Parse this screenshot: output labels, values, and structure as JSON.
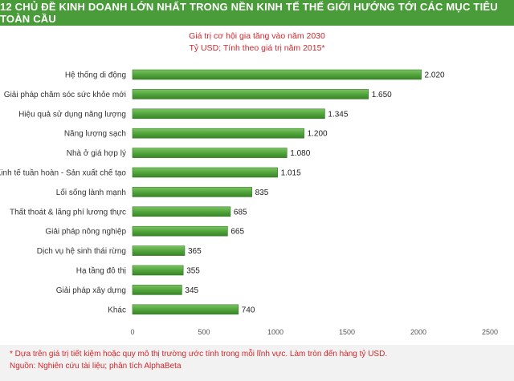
{
  "header": {
    "title": "12 CHỦ ĐỀ KINH DOANH LỚN NHẤT TRONG NỀN KINH TẾ THẾ GIỚI HƯỚNG TỚI CÁC MỤC TIÊU TOÀN CẦU",
    "subtitle_line1": "Giá trị cơ hội gia tăng vào năm 2030",
    "subtitle_line2": "Tỷ USD; Tính theo giá trị năm 2015*"
  },
  "footer": {
    "footnote": "* Dựa trên giá trị tiết kiệm hoặc quy mô thị trường ước tính trong mỗi lĩnh vực. Làm tròn đến hàng tỷ USD.",
    "source": "Nguồn: Nghiên cứu tài liệu; phân tích AlphaBeta"
  },
  "colors": {
    "bar": "#5cae45",
    "bar_dark": "#3f8a2f",
    "title_bg": "#4a9b3a",
    "accent_red": "#d2262c"
  },
  "chart_data": {
    "type": "bar",
    "orientation": "horizontal",
    "title": "12 CHỦ ĐỀ KINH DOANH LỚN NHẤT TRONG NỀN KINH TẾ THẾ GIỚI HƯỚNG TỚI CÁC MỤC TIÊU TOÀN CẦU",
    "subtitle": "Giá trị cơ hội gia tăng vào năm 2030 — Tỷ USD; Tính theo giá trị năm 2015*",
    "categories": [
      "Hệ thống di động",
      "Giải pháp chăm sóc sức khỏe mới",
      "Hiệu quả sử dụng năng lượng",
      "Năng lượng sạch",
      "Nhà ở giá hợp lý",
      "Kinh tế tuần hoàn - Sản xuất chế tạo",
      "Lối sống lành mạnh",
      "Thất thoát & lãng phí lương thực",
      "Giải pháp nông nghiệp",
      "Dịch vụ hệ sinh thái rừng",
      "Hạ tầng đô thị",
      "Giải pháp xây dựng",
      "Khác"
    ],
    "values": [
      2020,
      1650,
      1345,
      1200,
      1080,
      1015,
      835,
      685,
      665,
      365,
      355,
      345,
      740
    ],
    "value_labels": [
      "2.020",
      "1.650",
      "1.345",
      "1.200",
      "1.080",
      "1.015",
      "835",
      "685",
      "665",
      "365",
      "355",
      "345",
      "740"
    ],
    "xlim": [
      0,
      2500
    ],
    "xticks": [
      0,
      500,
      1000,
      1500,
      2000,
      2500
    ],
    "xlabel": "",
    "ylabel": "",
    "grid": false,
    "legend": "none"
  }
}
